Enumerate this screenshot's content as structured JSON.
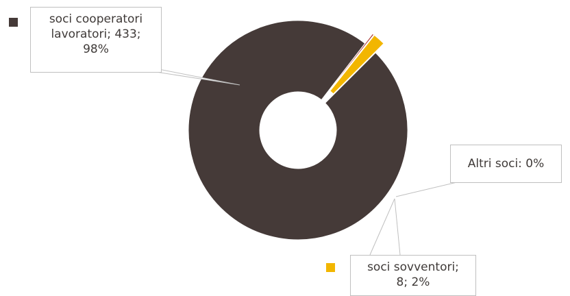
{
  "chart_data": {
    "type": "pie",
    "style": "doughnut",
    "exploded": true,
    "slices": [
      {
        "name": "soci cooperatori lavoratori",
        "value": 433,
        "percent": 98,
        "color": "#453a38",
        "label_lines": [
          "soci cooperatori",
          "lavoratori; 433;",
          "98%"
        ]
      },
      {
        "name": "Altri soci",
        "value": 1,
        "percent": 0,
        "color": "#a9342e",
        "label_lines": [
          "Altri soci: 0%"
        ]
      },
      {
        "name": "soci sovventori",
        "value": 8,
        "percent": 2,
        "color": "#f2b600",
        "label_lines": [
          "soci sovventori;",
          "8; 2%"
        ]
      }
    ]
  }
}
